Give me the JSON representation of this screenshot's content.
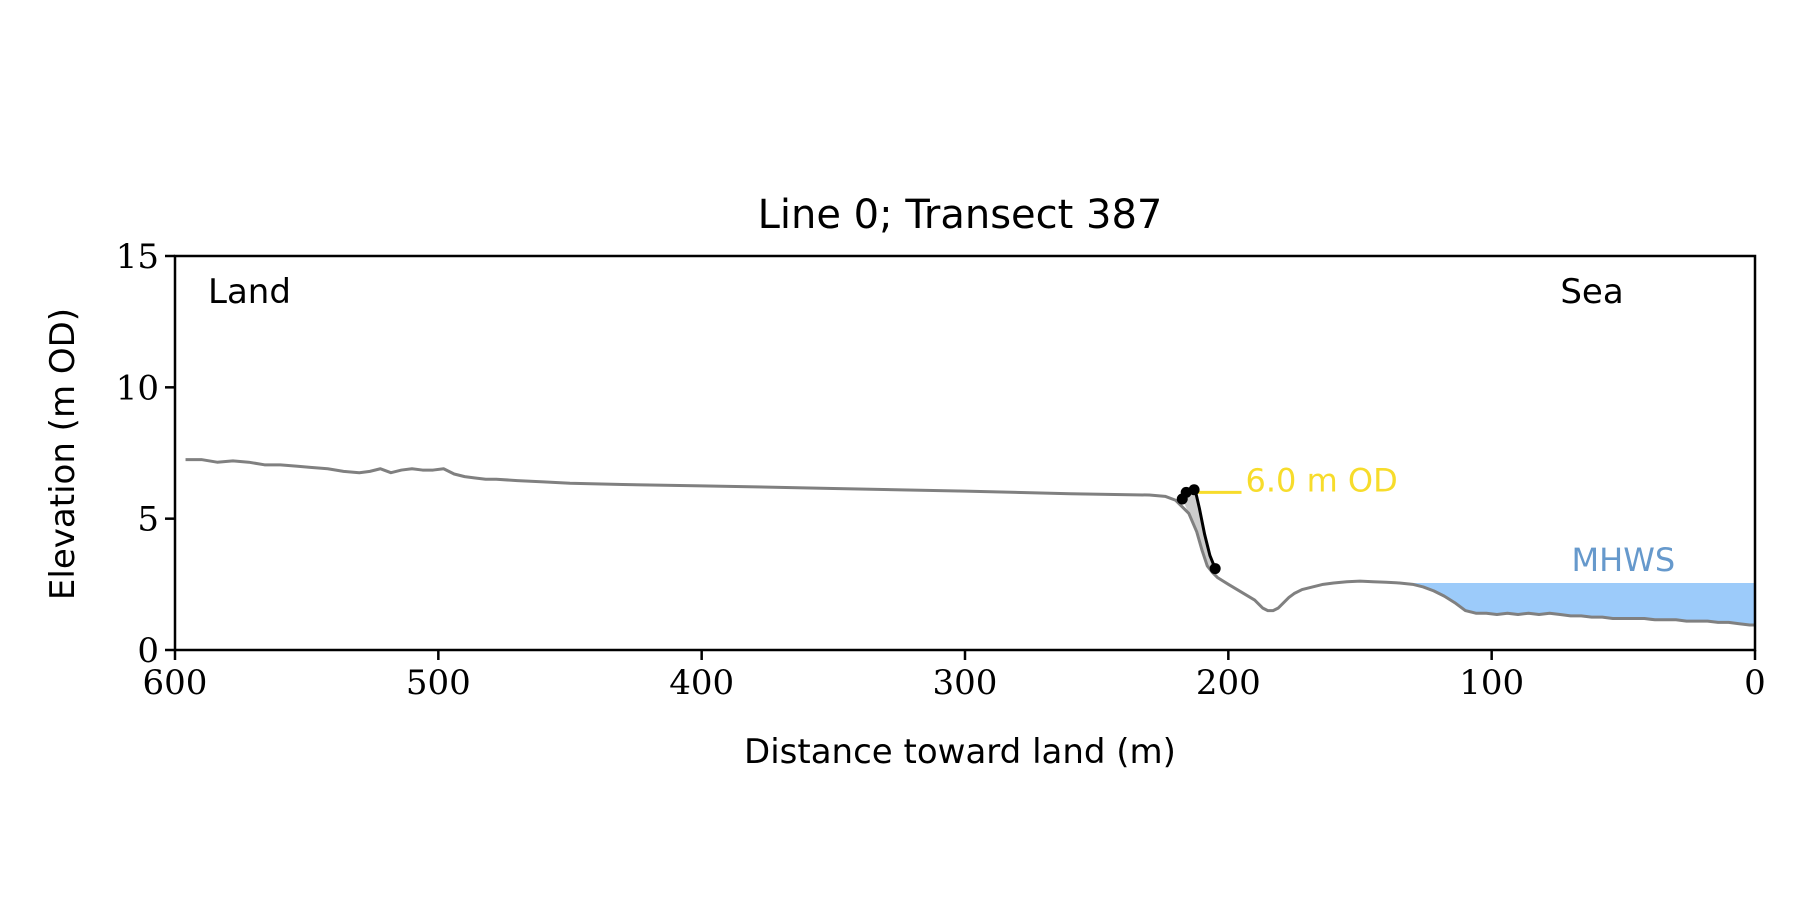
{
  "chart_data": {
    "type": "line",
    "title": "Line 0; Transect 387",
    "xlabel": "Distance toward land (m)",
    "ylabel": "Elevation (m OD)",
    "xlim": [
      600,
      0
    ],
    "ylim": [
      0,
      15
    ],
    "x_inverted": true,
    "xticks": [
      600,
      500,
      400,
      300,
      200,
      100,
      0
    ],
    "yticks": [
      0,
      5,
      10,
      15
    ],
    "grid": false,
    "corner_labels": {
      "left": "Land",
      "right": "Sea"
    },
    "profile": {
      "color": "#808080",
      "x": [
        596,
        590,
        584,
        578,
        572,
        566,
        560,
        554,
        548,
        542,
        536,
        530,
        526,
        522,
        518,
        514,
        510,
        506,
        502,
        498,
        494,
        490,
        486,
        482,
        478,
        470,
        460,
        450,
        430,
        400,
        350,
        300,
        260,
        230,
        224,
        220,
        215,
        212,
        210,
        208,
        206,
        204,
        200,
        195,
        190,
        187,
        185,
        183,
        181,
        179,
        177,
        175,
        172,
        168,
        164,
        160,
        155,
        150,
        145,
        140,
        135,
        130,
        126,
        122,
        118,
        114,
        110,
        106,
        102,
        98,
        94,
        90,
        86,
        82,
        78,
        74,
        70,
        66,
        62,
        58,
        54,
        50,
        46,
        42,
        38,
        34,
        30,
        26,
        22,
        18,
        14,
        10,
        6,
        2,
        0
      ],
      "y": [
        7.25,
        7.25,
        7.15,
        7.2,
        7.15,
        7.05,
        7.05,
        7.0,
        6.95,
        6.9,
        6.8,
        6.75,
        6.8,
        6.9,
        6.75,
        6.85,
        6.9,
        6.85,
        6.85,
        6.9,
        6.7,
        6.6,
        6.55,
        6.5,
        6.5,
        6.45,
        6.4,
        6.35,
        6.3,
        6.25,
        6.15,
        6.05,
        5.95,
        5.9,
        5.85,
        5.7,
        5.2,
        4.5,
        3.8,
        3.2,
        2.95,
        2.75,
        2.5,
        2.2,
        1.9,
        1.6,
        1.5,
        1.5,
        1.6,
        1.8,
        2.0,
        2.15,
        2.3,
        2.4,
        2.5,
        2.55,
        2.6,
        2.62,
        2.6,
        2.58,
        2.55,
        2.5,
        2.4,
        2.25,
        2.05,
        1.8,
        1.5,
        1.4,
        1.4,
        1.35,
        1.4,
        1.35,
        1.4,
        1.35,
        1.4,
        1.35,
        1.3,
        1.3,
        1.25,
        1.25,
        1.2,
        1.2,
        1.2,
        1.2,
        1.15,
        1.15,
        1.15,
        1.1,
        1.1,
        1.1,
        1.05,
        1.05,
        1.0,
        0.95,
        0.95
      ]
    },
    "cliff": {
      "color": "#000000",
      "x": [
        217.5,
        216,
        214,
        212.5,
        211,
        209,
        207,
        205
      ],
      "y": [
        5.75,
        6.0,
        6.1,
        6.05,
        5.4,
        4.4,
        3.6,
        3.1
      ],
      "markers": [
        {
          "x": 217.5,
          "y": 5.75
        },
        {
          "x": 216,
          "y": 6.0
        },
        {
          "x": 213,
          "y": 6.1
        },
        {
          "x": 205,
          "y": 3.1
        }
      ]
    },
    "threshold": {
      "label": "6.0 m OD",
      "value": 6.0,
      "x_range": [
        212,
        195
      ],
      "color": "#f7dc2b"
    },
    "mhws": {
      "label": "MHWS",
      "value": 2.55,
      "x_from": 134,
      "x_to": 0,
      "fill_color": "#9ccbfa",
      "label_color": "#6699cc"
    },
    "erosion_fill_color": "#cccccc"
  }
}
